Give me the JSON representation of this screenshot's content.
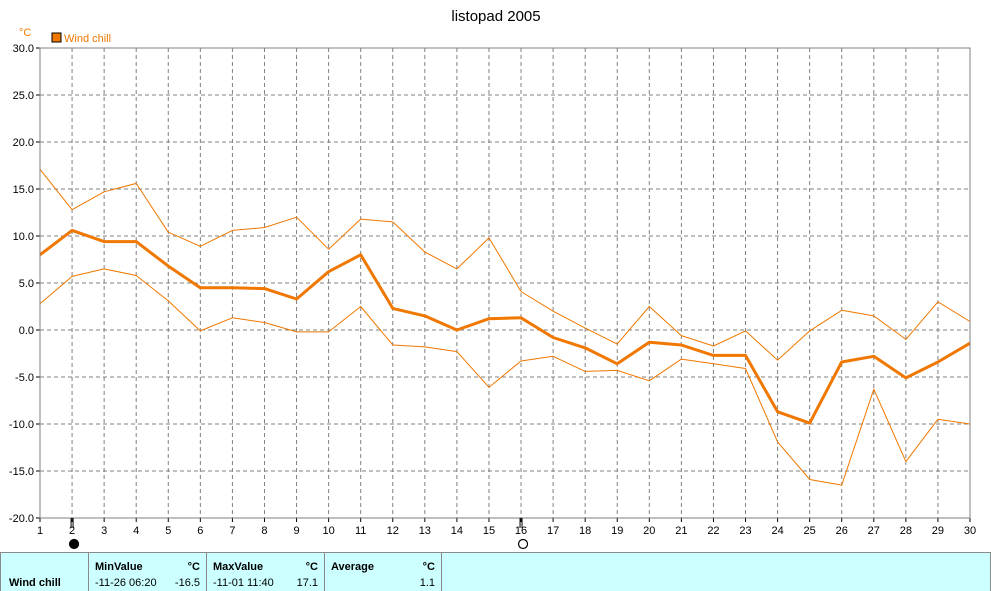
{
  "chart_data": {
    "type": "line",
    "title": "listopad 2005",
    "ylabel": "°C",
    "ylim": [
      -20,
      30
    ],
    "xlim": [
      1,
      30
    ],
    "yticks": [
      "30.0",
      "25.0",
      "20.0",
      "15.0",
      "10.0",
      "5.0",
      "0.0",
      "-5.0",
      "-10.0",
      "-15.0",
      "-20.0"
    ],
    "grid": true,
    "legend": "top-left",
    "x": [
      1,
      2,
      3,
      4,
      5,
      6,
      7,
      8,
      9,
      10,
      11,
      12,
      13,
      14,
      15,
      16,
      17,
      18,
      19,
      20,
      21,
      22,
      23,
      24,
      25,
      26,
      27,
      28,
      29,
      30
    ],
    "series": [
      {
        "name": "Wind chill",
        "role": "average",
        "color": "#f07800",
        "values": [
          8.0,
          10.6,
          9.4,
          9.4,
          6.8,
          4.5,
          4.5,
          4.4,
          3.3,
          6.2,
          8.0,
          2.3,
          1.5,
          0.0,
          1.2,
          1.3,
          -0.8,
          -1.9,
          -3.6,
          -1.3,
          -1.6,
          -2.7,
          -2.7,
          -8.7,
          -9.9,
          -3.4,
          -2.8,
          -5.1,
          -3.4,
          -1.4
        ]
      },
      {
        "role": "max",
        "color": "#f07800",
        "values": [
          17.1,
          12.8,
          14.7,
          15.6,
          10.4,
          8.9,
          10.6,
          10.9,
          12.0,
          8.6,
          11.8,
          11.5,
          8.3,
          6.5,
          9.8,
          4.1,
          2.0,
          0.2,
          -1.5,
          2.5,
          -0.6,
          -1.7,
          -0.1,
          -3.2,
          -0.1,
          2.1,
          1.5,
          -1.0,
          3.0,
          0.9
        ]
      },
      {
        "role": "min",
        "color": "#f07800",
        "values": [
          2.8,
          5.7,
          6.5,
          5.8,
          3.1,
          -0.1,
          1.3,
          0.8,
          -0.2,
          -0.2,
          2.5,
          -1.6,
          -1.8,
          -2.3,
          -6.1,
          -3.3,
          -2.8,
          -4.4,
          -4.3,
          -5.4,
          -3.1,
          -3.6,
          -4.1,
          -11.9,
          -15.9,
          -16.5,
          -6.3,
          -14.0,
          -9.5,
          -10.0
        ]
      }
    ],
    "markers": [
      {
        "x": 2,
        "icon": "new-moon-icon"
      },
      {
        "x": 16,
        "icon": "full-moon-icon"
      }
    ]
  },
  "stats": {
    "series_label": "Wind chill",
    "min": {
      "header": "MinValue",
      "unit": "°C",
      "when": "-11-26  06:20",
      "value": "-16.5"
    },
    "max": {
      "header": "MaxValue",
      "unit": "°C",
      "when": "-11-01  11:40",
      "value": "17.1"
    },
    "avg": {
      "header": "Average",
      "unit": "°C",
      "value": "1.1"
    }
  }
}
